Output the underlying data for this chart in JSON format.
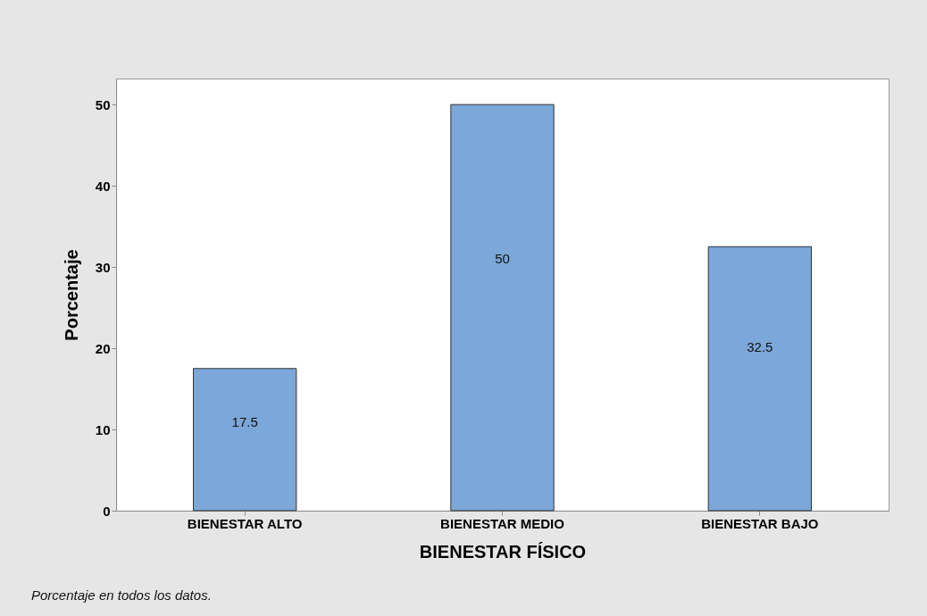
{
  "chart_data": {
    "type": "bar",
    "xlabel": "BIENESTAR FÍSICO",
    "ylabel": "Porcentaje",
    "categories": [
      "BIENESTAR ALTO",
      "BIENESTAR MEDIO",
      "BIENESTAR BAJO"
    ],
    "values": [
      17.5,
      50,
      32.5
    ],
    "color": "#7ba7d9",
    "ylim": [
      0,
      53.2
    ],
    "yticks": [
      0,
      10,
      20,
      30,
      40,
      50
    ],
    "grid": false,
    "data_labels": true,
    "annotations": [
      "Porcentaje en todos los datos."
    ]
  }
}
